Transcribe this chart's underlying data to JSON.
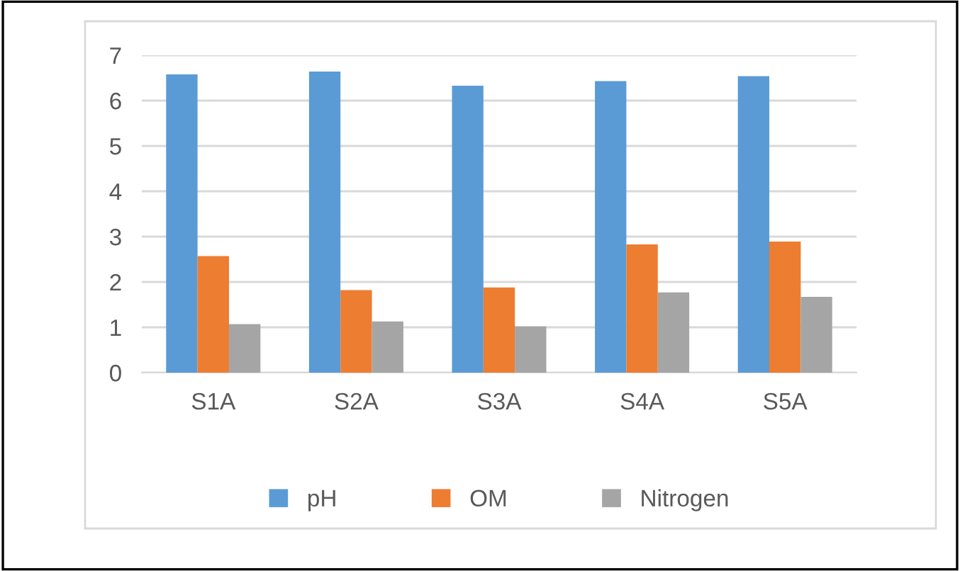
{
  "chart_data": {
    "type": "bar",
    "categories": [
      "S1A",
      "S2A",
      "S3A",
      "S4A",
      "S5A"
    ],
    "series": [
      {
        "name": "pH",
        "color": "#5b9bd5",
        "values": [
          6.58,
          6.64,
          6.33,
          6.43,
          6.54
        ]
      },
      {
        "name": "OM",
        "color": "#ed7d31",
        "values": [
          2.57,
          1.82,
          1.88,
          2.83,
          2.89
        ]
      },
      {
        "name": "Nitrogen",
        "color": "#a5a5a5",
        "values": [
          1.07,
          1.13,
          1.02,
          1.77,
          1.67
        ]
      }
    ],
    "ylim": [
      0,
      7
    ],
    "yticks": [
      0,
      1,
      2,
      3,
      4,
      5,
      6,
      7
    ],
    "grid": "y",
    "legend": "bottom"
  }
}
